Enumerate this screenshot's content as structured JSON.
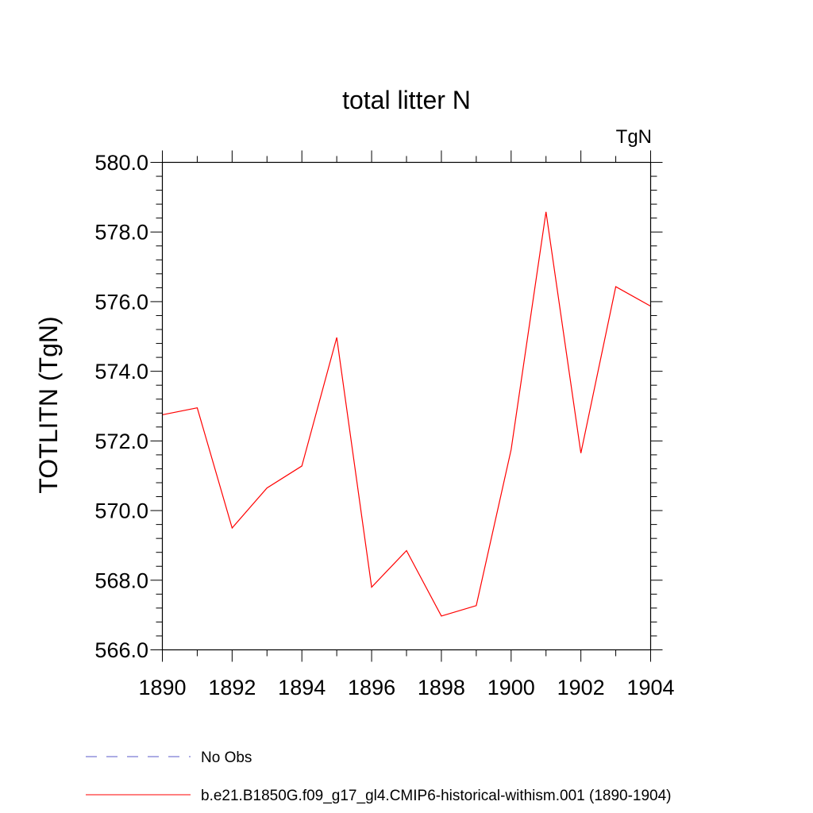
{
  "chart_data": {
    "type": "line",
    "title": "total litter N",
    "units_label": "TgN",
    "xlabel": "",
    "ylabel": "TOTLITN  (TgN)",
    "xlim": [
      1890,
      1904
    ],
    "ylim": [
      566.0,
      580.0
    ],
    "x_ticks": [
      "1890",
      "1892",
      "1894",
      "1896",
      "1898",
      "1900",
      "1902",
      "1904"
    ],
    "y_ticks": [
      "566.0",
      "568.0",
      "570.0",
      "572.0",
      "574.0",
      "576.0",
      "578.0",
      "580.0"
    ],
    "x": [
      1890,
      1891,
      1892,
      1893,
      1894,
      1895,
      1896,
      1897,
      1898,
      1899,
      1900,
      1901,
      1902,
      1903,
      1904
    ],
    "series": [
      {
        "name": "b.e21.B1850G.f09_g17_gl4.CMIP6-historical-withism.001 (1890-1904)",
        "color": "#ff0000",
        "values": [
          572.75,
          572.95,
          569.5,
          570.65,
          571.28,
          574.97,
          567.8,
          568.85,
          566.97,
          567.27,
          571.75,
          578.58,
          571.65,
          576.43,
          575.87
        ]
      }
    ],
    "legend": [
      {
        "label": "No Obs",
        "color": "#5a5ac8",
        "style": "dashed"
      },
      {
        "label": "b.e21.B1850G.f09_g17_gl4.CMIP6-historical-withism.001 (1890-1904)",
        "color": "#ff0000",
        "style": "solid"
      }
    ],
    "legend_position": "bottom",
    "grid": false
  }
}
